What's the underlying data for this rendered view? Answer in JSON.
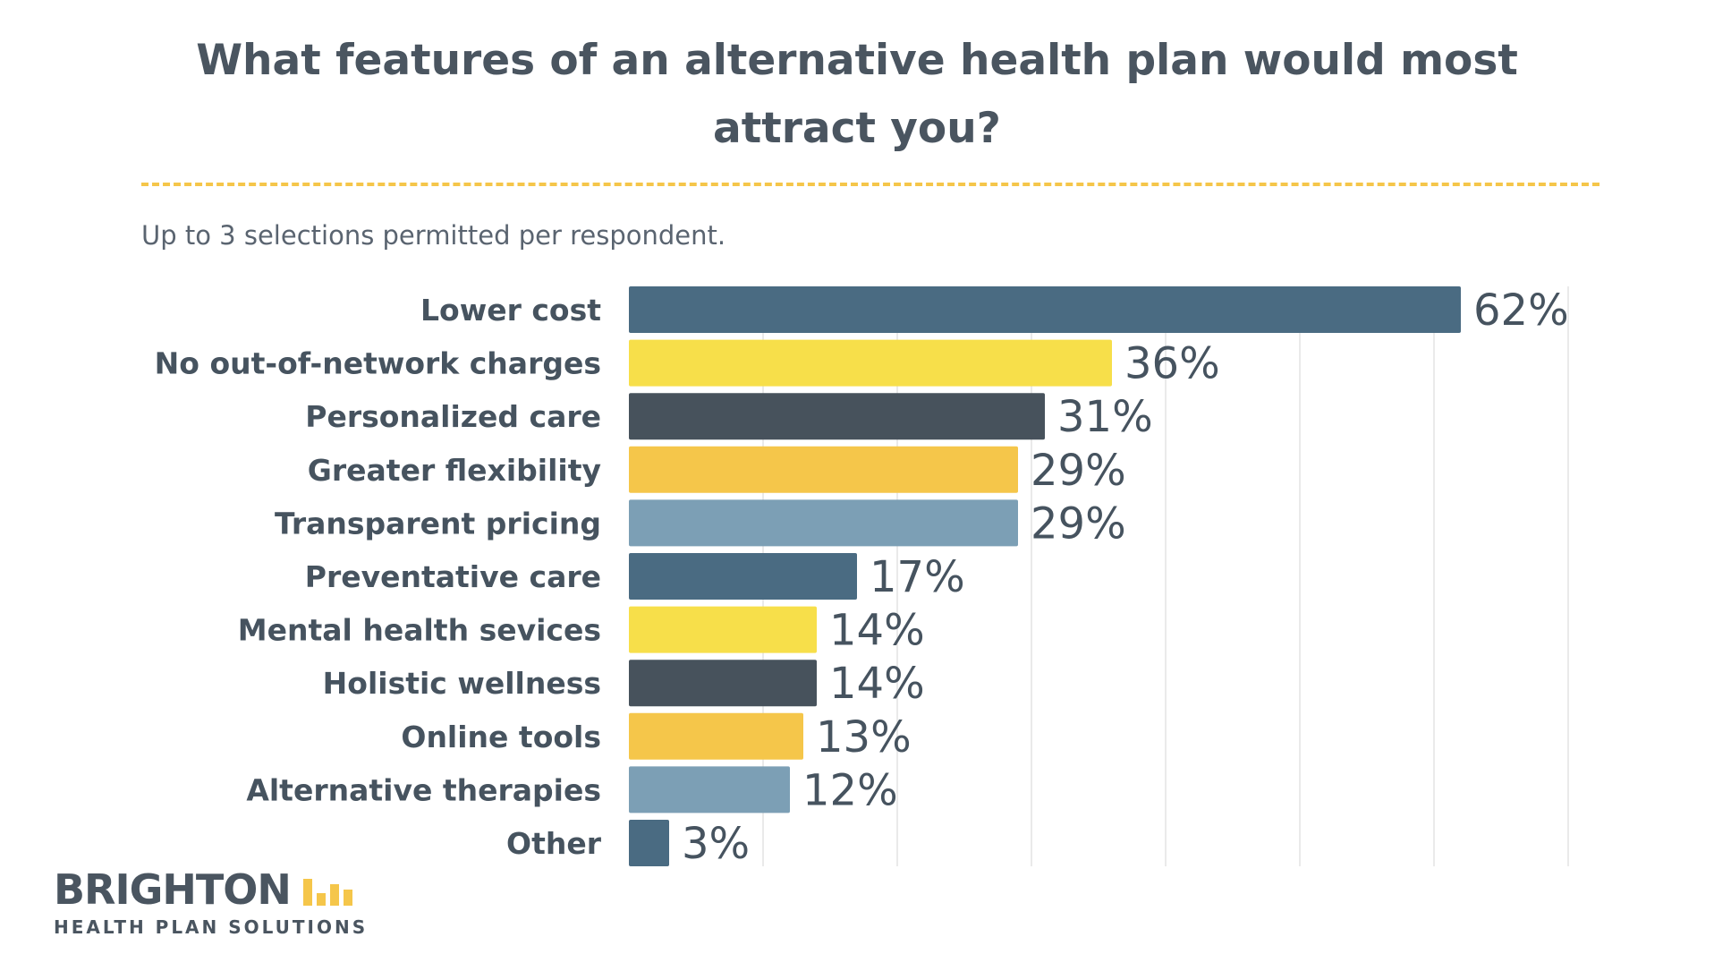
{
  "chart_data": {
    "type": "bar",
    "orientation": "horizontal",
    "title": "What features of an alternative health plan would most attract you?",
    "subtitle": "Up to 3 selections permitted per respondent.",
    "categories": [
      "Lower cost",
      "No out-of-network charges",
      "Personalized care",
      "Greater flexibility",
      "Transparent pricing",
      "Preventative care",
      "Mental health sevices",
      "Holistic wellness",
      "Online tools",
      "Alternative therapies",
      "Other"
    ],
    "values": [
      62,
      36,
      31,
      29,
      29,
      17,
      14,
      14,
      13,
      12,
      3
    ],
    "value_labels": [
      "62%",
      "36%",
      "31%",
      "29%",
      "29%",
      "17%",
      "14%",
      "14%",
      "13%",
      "12%",
      "3%"
    ],
    "colors": [
      "#4a6b82",
      "#f7df4a",
      "#47525c",
      "#f5c64a",
      "#7c9fb5",
      "#4a6b82",
      "#f7df4a",
      "#47525c",
      "#f5c64a",
      "#7c9fb5",
      "#4a6b82"
    ],
    "xlim": [
      0,
      70
    ],
    "grid": true,
    "gridline_color": "#e3e3e3"
  },
  "brand": {
    "name": "BRIGHTON",
    "tagline": "HEALTH PLAN SOLUTIONS",
    "accent": "#f5c64a",
    "text_color": "#4a5560"
  }
}
